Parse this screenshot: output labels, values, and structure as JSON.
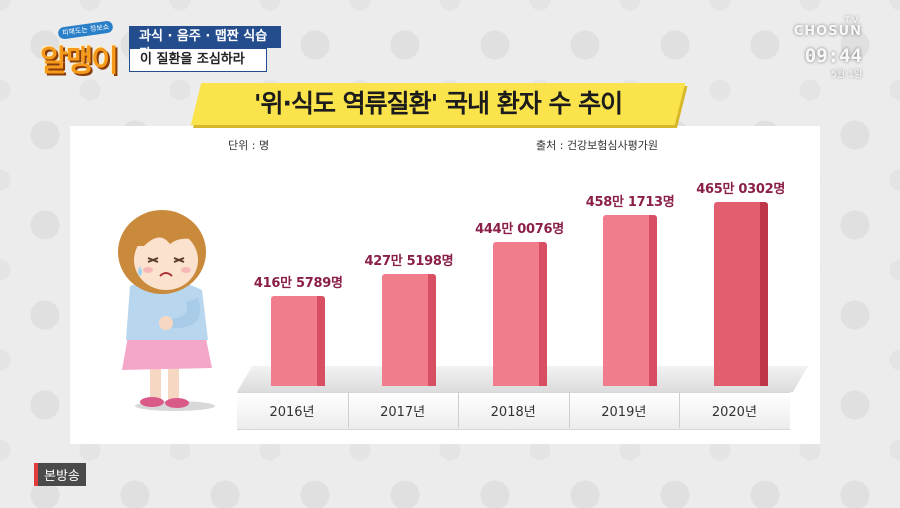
{
  "show": {
    "logo_tag": "피해도는 정보쇼",
    "logo_text": "알맹이",
    "caption_line1": "과식 · 음주 · 맵짠 식습관",
    "caption_line2": "이 질환을 조심하라"
  },
  "broadcaster": {
    "tv_label": "TV",
    "channel": "CHOSUN",
    "clock": "09:44",
    "date": "5월 1일"
  },
  "rebroadcast_tag": "본방송",
  "chart_data": {
    "type": "bar",
    "title": "'위·식도 역류질환' 국내 환자 수 추이",
    "unit_label": "단위 : 명",
    "source_label": "출처 : 건강보험심사평가원",
    "categories": [
      "2016년",
      "2017년",
      "2018년",
      "2019년",
      "2020년"
    ],
    "values": [
      4165789,
      4275198,
      4440076,
      4581713,
      4650302
    ],
    "value_labels": [
      "416만 5789명",
      "427만 5198명",
      "444만 0076명",
      "458만 1713명",
      "465만 0302명"
    ],
    "colors": {
      "bar_front": "#f07c8c",
      "bar_side": "#d84f64",
      "last_bar_front": "#e35e6e",
      "last_bar_side": "#bf3649",
      "label": "#8a1f4a"
    },
    "grid": false,
    "legend": "none"
  }
}
